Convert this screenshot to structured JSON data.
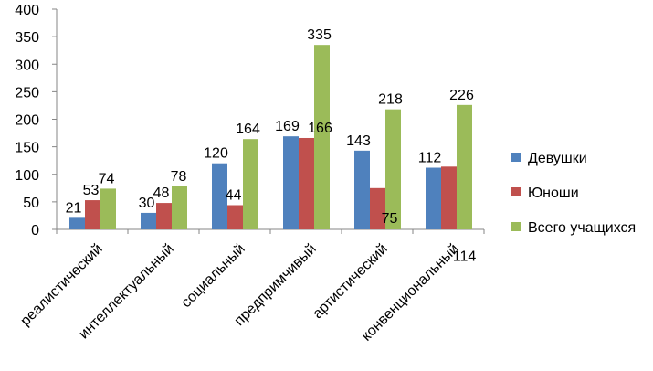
{
  "chart_data": {
    "type": "bar",
    "title": "",
    "xlabel": "",
    "ylabel": "",
    "ylim": [
      0,
      400
    ],
    "yticks": [
      0,
      50,
      100,
      150,
      200,
      250,
      300,
      350,
      400
    ],
    "grid": false,
    "legend_position": "right",
    "categories": [
      "реалистический",
      "интеллектуальный",
      "социальный",
      "предпримчивый",
      "артистический",
      "конвенциональный"
    ],
    "series": [
      {
        "name": "Девушки",
        "color": "#4F81BD",
        "values": [
          21,
          30,
          120,
          169,
          143,
          112
        ]
      },
      {
        "name": "Юноши",
        "color": "#C0504D",
        "values": [
          53,
          48,
          44,
          166,
          75,
          114
        ]
      },
      {
        "name": "Всего учащихся",
        "color": "#9BBB59",
        "values": [
          74,
          78,
          164,
          335,
          218,
          226
        ]
      }
    ]
  }
}
